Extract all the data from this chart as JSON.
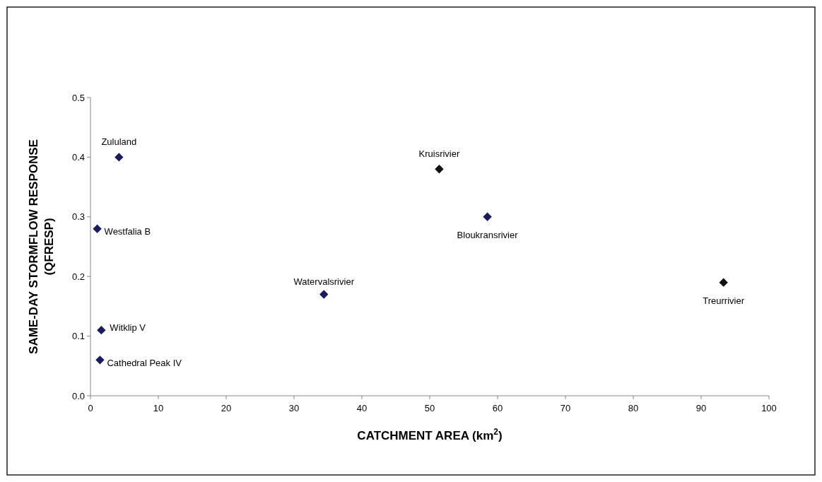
{
  "chart_data": {
    "type": "scatter",
    "xlabel": "CATCHMENT AREA (km$^{2}$)",
    "ylabel": "SAME-DAY STORMFLOW RESPONSE (QFRESP)",
    "x": [
      4.2,
      1.0,
      1.6,
      1.4,
      34.4,
      51.4,
      58.5,
      93.3
    ],
    "values": [
      0.4,
      0.28,
      0.11,
      0.06,
      0.17,
      0.38,
      0.3,
      0.19
    ],
    "colors": [
      "#1c1c5c",
      "#1c1c5c",
      "#1c1c5c",
      "#1c1c5c",
      "#1c1c5c",
      "#111111",
      "#1c1c5c",
      "#111111"
    ],
    "marker": "diamond",
    "xlim": [
      0,
      100
    ],
    "ylim": [
      0,
      0.5
    ],
    "xticks": [
      0,
      10,
      20,
      30,
      40,
      50,
      60,
      70,
      80,
      90,
      100
    ],
    "yticks": [
      {
        "value": 0,
        "label": "0.0"
      },
      0.1,
      0.2,
      0.3,
      0.4,
      0.5
    ],
    "annotations": [
      {
        "text": "Zululand",
        "x": 4.2,
        "y": 0.4
      },
      {
        "text": "Westfalia B",
        "x": 1.0,
        "y": 0.28
      },
      {
        "text": "Witklip V",
        "x": 1.6,
        "y": 0.11
      },
      {
        "text": "Cathedral Peak IV",
        "x": 1.4,
        "y": 0.06
      },
      {
        "text": "Watervalsrivier",
        "x": 34.4,
        "y": 0.17
      },
      {
        "text": "Kruisrivier",
        "x": 51.4,
        "y": 0.38
      },
      {
        "text": "Bloukransrivier",
        "x": 58.5,
        "y": 0.3
      },
      {
        "text": "Treurrivier",
        "x": 93.3,
        "y": 0.19
      }
    ]
  }
}
